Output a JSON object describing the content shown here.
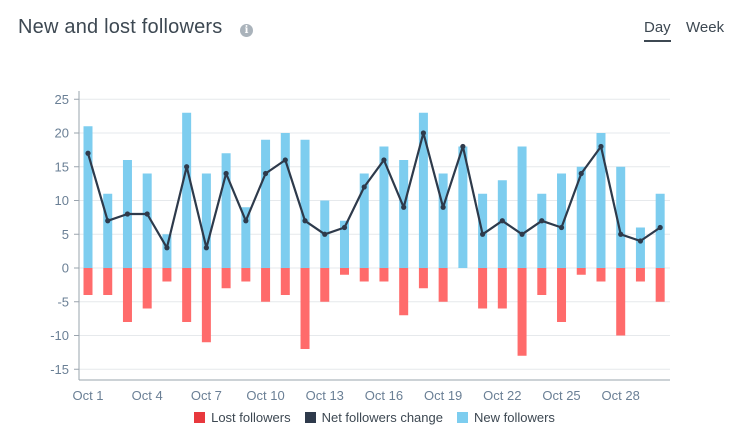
{
  "header": {
    "title": "New and lost followers",
    "info_icon": "info-icon",
    "periods": [
      "Day",
      "Week"
    ],
    "selected_period": "Day"
  },
  "colors": {
    "new": "#7dcdef",
    "lost": "#ff6b6b",
    "net": "#2e3a4b",
    "legend_lost_swatch": "#e8383d"
  },
  "chart_data": {
    "type": "bar",
    "categories": [
      "Oct 1",
      "Oct 2",
      "Oct 3",
      "Oct 4",
      "Oct 5",
      "Oct 6",
      "Oct 7",
      "Oct 8",
      "Oct 9",
      "Oct 10",
      "Oct 11",
      "Oct 12",
      "Oct 13",
      "Oct 14",
      "Oct 15",
      "Oct 16",
      "Oct 17",
      "Oct 18",
      "Oct 19",
      "Oct 20",
      "Oct 21",
      "Oct 22",
      "Oct 23",
      "Oct 24",
      "Oct 25",
      "Oct 26",
      "Oct 27",
      "Oct 28",
      "Oct 29",
      "Oct 30"
    ],
    "x_tick_labels": [
      "Oct 1",
      "Oct 4",
      "Oct 7",
      "Oct 10",
      "Oct 13",
      "Oct 16",
      "Oct 19",
      "Oct 22",
      "Oct 25",
      "Oct 28"
    ],
    "y_ticks": [
      25,
      20,
      15,
      10,
      5,
      0,
      -5,
      -10,
      -15
    ],
    "ylim": [
      -16,
      26
    ],
    "stacked": true,
    "grid": true,
    "legend_position": "bottom",
    "series": [
      {
        "name": "Lost followers",
        "type": "bar",
        "values": [
          -4,
          -4,
          -8,
          -6,
          -2,
          -8,
          -11,
          -3,
          -2,
          -5,
          -4,
          -12,
          -5,
          -1,
          -2,
          -2,
          -7,
          -3,
          -5,
          0,
          -6,
          -6,
          -13,
          -4,
          -8,
          -1,
          -2,
          -10,
          -2,
          -5
        ]
      },
      {
        "name": "Net followers change",
        "type": "line",
        "values": [
          17,
          7,
          8,
          8,
          3,
          15,
          3,
          14,
          7,
          14,
          16,
          7,
          5,
          6,
          12,
          16,
          9,
          20,
          9,
          18,
          5,
          7,
          5,
          7,
          6,
          14,
          18,
          5,
          4,
          6
        ]
      },
      {
        "name": "New followers",
        "type": "bar",
        "values": [
          21,
          11,
          16,
          14,
          5,
          23,
          14,
          17,
          9,
          19,
          20,
          19,
          10,
          7,
          14,
          18,
          16,
          23,
          14,
          18,
          11,
          13,
          18,
          11,
          14,
          15,
          20,
          15,
          6,
          11
        ]
      }
    ]
  }
}
